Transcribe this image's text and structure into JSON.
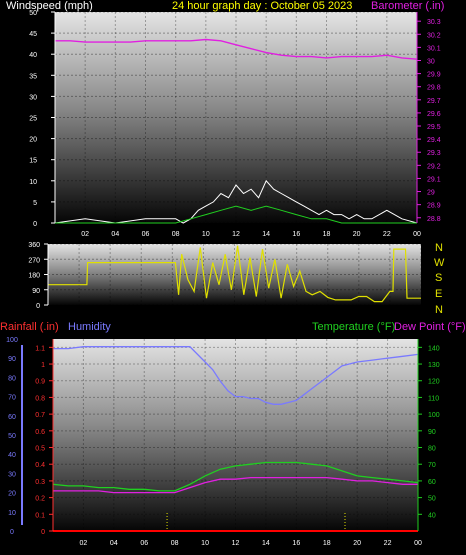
{
  "chart_data": [
    {
      "type": "line",
      "title": "24 hour graph day : October 05 2023",
      "ylabel_left": "Windspeed (mph)",
      "ylabel_right": "Barometer (.in)",
      "x_ticks": [
        "02",
        "04",
        "06",
        "08",
        "10",
        "12",
        "14",
        "16",
        "18",
        "20",
        "22",
        "00"
      ],
      "x_range": [
        0,
        24
      ],
      "y_left_ticks": [
        "0",
        "5",
        "10",
        "15",
        "20",
        "25",
        "30",
        "35",
        "40",
        "45",
        "50"
      ],
      "y_left_range": [
        0,
        50
      ],
      "y_right_ticks": [
        "28.8",
        "28.9",
        "29",
        "29.1",
        "29.2",
        "29.3",
        "29.4",
        "29.5",
        "29.6",
        "29.7",
        "29.8",
        "29.9",
        "30",
        "30.1",
        "30.2",
        "30.3"
      ],
      "y_right_range": [
        28.76,
        30.37
      ],
      "series": [
        {
          "name": "Barometer (.in)",
          "axis": "right",
          "color": "#e020e0",
          "x": [
            0,
            1,
            2,
            3,
            4,
            5,
            6,
            7,
            8,
            9,
            10,
            11,
            12,
            13,
            14,
            15,
            16,
            17,
            18,
            19,
            20,
            21,
            22,
            23,
            24
          ],
          "y": [
            30.15,
            30.15,
            30.14,
            30.14,
            30.14,
            30.14,
            30.15,
            30.15,
            30.15,
            30.15,
            30.16,
            30.15,
            30.12,
            30.09,
            30.06,
            30.04,
            30.03,
            30.03,
            30.02,
            30.03,
            30.03,
            30.03,
            30.04,
            30.02,
            30.01
          ]
        },
        {
          "name": "Windspeed (mph)",
          "axis": "left",
          "color": "#ffffff",
          "x": [
            0,
            2,
            4,
            6,
            8,
            8.5,
            9,
            9.5,
            10,
            10.5,
            11,
            11.5,
            12,
            12.5,
            13,
            13.5,
            14,
            14.5,
            15,
            15.5,
            16,
            16.5,
            17,
            17.5,
            18,
            18.5,
            19,
            19.5,
            20,
            20.5,
            21,
            21.5,
            22,
            22.5,
            23,
            24
          ],
          "y": [
            0,
            1,
            0,
            1,
            1,
            0,
            1,
            3,
            4,
            5,
            7,
            6,
            9,
            7,
            8,
            6,
            10,
            8,
            7,
            6,
            5,
            4,
            3,
            2,
            3,
            2,
            2,
            1,
            2,
            1,
            1,
            2,
            3,
            2,
            1,
            0
          ]
        },
        {
          "name": "Wind gust",
          "axis": "left",
          "color": "#20d020",
          "x": [
            0,
            8,
            9,
            10,
            11,
            12,
            13,
            14,
            15,
            16,
            17,
            18,
            19,
            20,
            24
          ],
          "y": [
            0,
            0,
            1,
            2,
            3,
            4,
            3,
            4,
            3,
            2,
            1,
            1,
            0,
            0,
            0
          ]
        }
      ]
    },
    {
      "type": "line",
      "ylabel_right": "N W S E N",
      "x_range": [
        0,
        24
      ],
      "y_ticks": [
        "0",
        "90",
        "180",
        "270",
        "360"
      ],
      "y_range": [
        0,
        360
      ],
      "series": [
        {
          "name": "Wind direction",
          "color": "#e0e000",
          "x": [
            0,
            2.5,
            2.55,
            8.2,
            8.4,
            8.6,
            9,
            9.4,
            9.8,
            10.2,
            10.6,
            11,
            11.4,
            11.8,
            12.2,
            12.6,
            13,
            13.4,
            13.8,
            14.2,
            14.6,
            15,
            15.4,
            15.8,
            16.2,
            16.6,
            17,
            17.5,
            18,
            18.5,
            19,
            19.5,
            20,
            20.5,
            21,
            21.5,
            22,
            22.2,
            22.25,
            23,
            23.1,
            24
          ],
          "y": [
            120,
            120,
            250,
            250,
            60,
            300,
            150,
            80,
            340,
            40,
            250,
            120,
            300,
            90,
            350,
            60,
            280,
            50,
            330,
            100,
            270,
            40,
            240,
            110,
            200,
            80,
            60,
            80,
            45,
            30,
            30,
            30,
            50,
            50,
            20,
            20,
            80,
            80,
            330,
            330,
            40,
            40
          ]
        }
      ]
    },
    {
      "type": "line",
      "ylabel_left_1": "Rainfall (.in)",
      "ylabel_left_2": "Humidity",
      "ylabel_right_1": "Temperature (°F)",
      "ylabel_right_2": "Dew Point (°F)",
      "x_ticks": [
        "02",
        "04",
        "06",
        "08",
        "10",
        "12",
        "14",
        "16",
        "18",
        "20",
        "22",
        "00"
      ],
      "x_range": [
        0,
        24
      ],
      "humidity_ticks": [
        "0",
        "10",
        "20",
        "30",
        "40",
        "50",
        "60",
        "70",
        "80",
        "90",
        "100"
      ],
      "humidity_range": [
        0,
        100
      ],
      "rain_ticks": [
        "0",
        "0.1",
        "0.2",
        "0.3",
        "0.4",
        "0.5",
        "0.6",
        "0.7",
        "0.8",
        "0.9",
        "1",
        "1.1"
      ],
      "rain_range": [
        0,
        1.15
      ],
      "temp_ticks": [
        "40",
        "50",
        "60",
        "70",
        "80",
        "90",
        "100",
        "110",
        "120",
        "130",
        "140"
      ],
      "temp_range": [
        30,
        145
      ],
      "series": [
        {
          "name": "Humidity",
          "axis": "humidity",
          "color": "#7a7aff",
          "x": [
            0,
            1,
            2,
            3,
            4,
            5,
            6,
            7,
            8,
            9,
            10,
            10.5,
            11,
            11.5,
            12,
            12.5,
            13,
            13.5,
            14,
            14.5,
            15,
            15.5,
            16,
            16.5,
            17,
            18,
            19,
            20,
            21,
            22,
            23,
            24
          ],
          "y": [
            95,
            95,
            96,
            96,
            96,
            96,
            96,
            96,
            96,
            96,
            88,
            84,
            78,
            73,
            70,
            70,
            69,
            69,
            67,
            66,
            66,
            67,
            68,
            71,
            74,
            80,
            86,
            88,
            89,
            90,
            91,
            92
          ]
        },
        {
          "name": "Temperature (°F)",
          "axis": "temp",
          "color": "#20d020",
          "x": [
            0,
            1,
            2,
            3,
            4,
            5,
            6,
            7,
            8,
            9,
            10,
            11,
            12,
            13,
            14,
            15,
            16,
            17,
            18,
            19,
            20,
            21,
            22,
            23,
            24
          ],
          "y": [
            58,
            57,
            57,
            56,
            56,
            55,
            55,
            54,
            54,
            58,
            63,
            67,
            69,
            70,
            71,
            71,
            71,
            70,
            69,
            66,
            63,
            62,
            61,
            60,
            59
          ]
        },
        {
          "name": "Dew Point (°F)",
          "axis": "temp",
          "color": "#e020e0",
          "x": [
            0,
            1,
            2,
            3,
            4,
            5,
            6,
            7,
            8,
            9,
            10,
            11,
            12,
            13,
            14,
            15,
            16,
            17,
            18,
            19,
            20,
            21,
            22,
            23,
            24
          ],
          "y": [
            54,
            54,
            54,
            54,
            53,
            53,
            53,
            53,
            53,
            56,
            59,
            61,
            61,
            62,
            62,
            62,
            62,
            62,
            62,
            61,
            60,
            60,
            59,
            58,
            58
          ]
        },
        {
          "name": "Rainfall (.in)",
          "axis": "rain",
          "color": "#ff0000",
          "x": [
            0,
            24
          ],
          "y": [
            0,
            0
          ]
        }
      ],
      "markers_x": [
        7.5,
        19.2
      ]
    }
  ],
  "colors": {
    "title": "#ffff00",
    "windspeed_label": "#ffffff",
    "barometer_label": "#e020e0",
    "rain_label": "#ff3030",
    "humidity_label": "#7a7aff",
    "temp_label": "#20d020",
    "dew_label": "#e020e0",
    "direction_label": "#e0e000",
    "grid_top": "#dcdcdc",
    "grid_bottom": "#000000"
  }
}
